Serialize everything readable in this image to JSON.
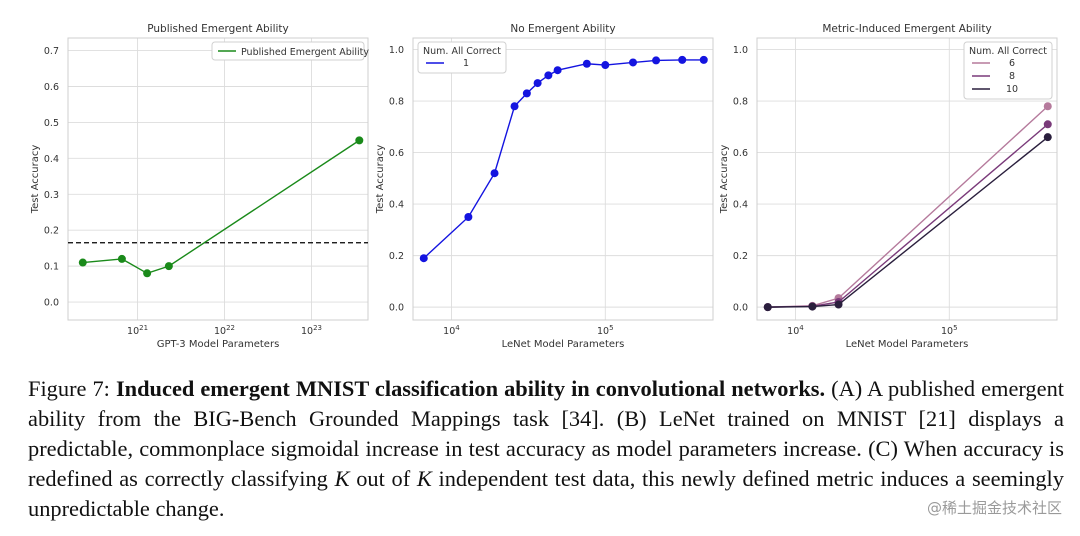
{
  "chart_data": [
    {
      "type": "line",
      "title": "Published Emergent Ability",
      "xlabel": "GPT-3 Model Parameters",
      "ylabel": "Test Accuracy",
      "xscale": "log",
      "xlim_log10": [
        20.2,
        23.65
      ],
      "ylim": [
        -0.05,
        0.735
      ],
      "xticks": [
        {
          "value": 21,
          "base": "10",
          "exp": "21"
        },
        {
          "value": 22,
          "base": "10",
          "exp": "22"
        },
        {
          "value": 23,
          "base": "10",
          "exp": "23"
        }
      ],
      "yticks": [
        "0.0",
        "0.1",
        "0.2",
        "0.3",
        "0.4",
        "0.5",
        "0.6",
        "0.7"
      ],
      "yticks_values": [
        0.0,
        0.1,
        0.2,
        0.3,
        0.4,
        0.5,
        0.6,
        0.7
      ],
      "legend_position": "top-right",
      "reference_line": {
        "y": 0.165,
        "style": "dashed",
        "color": "#000000"
      },
      "series": [
        {
          "name": "Published Emergent Ability",
          "color": "#1a8a1a",
          "x_log10": [
            20.37,
            20.82,
            21.11,
            21.36,
            23.55
          ],
          "y": [
            0.11,
            0.12,
            0.08,
            0.1,
            0.45
          ]
        }
      ]
    },
    {
      "type": "line",
      "title": "No Emergent Ability",
      "xlabel": "LeNet Model Parameters",
      "ylabel": "Test Accuracy",
      "xscale": "log",
      "xlim_log10": [
        3.75,
        5.7
      ],
      "ylim": [
        -0.05,
        1.045
      ],
      "xticks": [
        {
          "value": 4,
          "base": "10",
          "exp": "4"
        },
        {
          "value": 5,
          "base": "10",
          "exp": "5"
        }
      ],
      "yticks": [
        "0.0",
        "0.2",
        "0.4",
        "0.6",
        "0.8",
        "1.0"
      ],
      "yticks_values": [
        0.0,
        0.2,
        0.4,
        0.6,
        0.8,
        1.0
      ],
      "legend_title": "Num. All Correct",
      "legend_position": "top-left",
      "series": [
        {
          "name": "1",
          "color": "#1414e0",
          "x_log10": [
            3.82,
            4.11,
            4.28,
            4.41,
            4.49,
            4.56,
            4.63,
            4.69,
            4.88,
            5.0,
            5.18,
            5.33,
            5.5,
            5.64
          ],
          "y": [
            0.19,
            0.35,
            0.52,
            0.78,
            0.83,
            0.87,
            0.9,
            0.92,
            0.945,
            0.94,
            0.95,
            0.958,
            0.96,
            0.96
          ]
        }
      ]
    },
    {
      "type": "line",
      "title": "Metric-Induced Emergent Ability",
      "xlabel": "LeNet Model Parameters",
      "ylabel": "Test Accuracy",
      "xscale": "log",
      "xlim_log10": [
        3.75,
        5.7
      ],
      "ylim": [
        -0.05,
        1.045
      ],
      "xticks": [
        {
          "value": 4,
          "base": "10",
          "exp": "4"
        },
        {
          "value": 5,
          "base": "10",
          "exp": "5"
        }
      ],
      "yticks": [
        "0.0",
        "0.2",
        "0.4",
        "0.6",
        "0.8",
        "1.0"
      ],
      "yticks_values": [
        0.0,
        0.2,
        0.4,
        0.6,
        0.8,
        1.0
      ],
      "legend_title": "Num. All Correct",
      "legend_position": "top-right",
      "series": [
        {
          "name": "6",
          "color": "#b57a9c",
          "x_log10": [
            3.82,
            4.11,
            4.28,
            5.64
          ],
          "y": [
            0.0,
            0.005,
            0.035,
            0.78
          ]
        },
        {
          "name": "8",
          "color": "#7a3a7a",
          "x_log10": [
            3.82,
            4.11,
            4.28,
            5.64
          ],
          "y": [
            0.0,
            0.003,
            0.02,
            0.71
          ]
        },
        {
          "name": "10",
          "color": "#2a1f3d",
          "x_log10": [
            3.82,
            4.11,
            4.28,
            5.64
          ],
          "y": [
            0.0,
            0.002,
            0.01,
            0.66
          ]
        }
      ]
    }
  ],
  "caption": {
    "label": "Figure 7:",
    "bold_title": "Induced emergent MNIST classification ability in convolutional networks.",
    "part1": "(A) A published emergent ability from the BIG-Bench Grounded Mappings task [34]. (B) LeNet trained on MNIST [21] displays a predictable, commonplace sigmoidal increase in test accuracy as model parameters increase. (C) When accuracy is redefined as correctly classifying",
    "k1": "K",
    "mid": "out of",
    "k2": "K",
    "part2": "independent test data, this newly defined metric induces a seemingly unpredictable change."
  },
  "watermark": "@稀土掘金技术社区"
}
